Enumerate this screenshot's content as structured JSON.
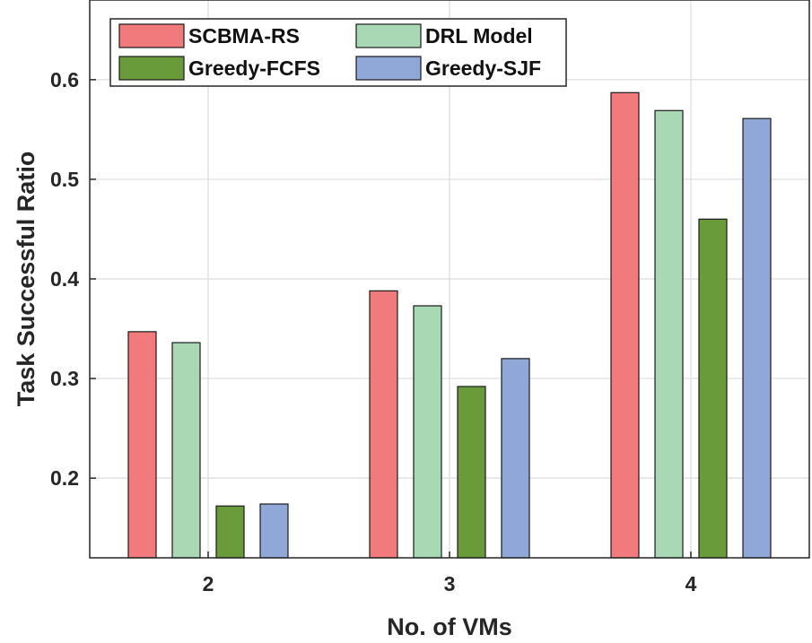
{
  "chart_data": {
    "type": "bar",
    "xlabel": "No. of VMs",
    "ylabel": "Task Successful Ratio",
    "categories": [
      "2",
      "3",
      "4"
    ],
    "ylim": [
      0.12,
      0.68
    ],
    "yticks": [
      0.2,
      0.3,
      0.4,
      0.5,
      0.6
    ],
    "ytick_labels": [
      "0.2",
      "0.3",
      "0.4",
      "0.5",
      "0.6"
    ],
    "grid": true,
    "legend_position": "top-left",
    "series": [
      {
        "name": "SCBMA-RS",
        "color": "#f07a7c",
        "values": [
          0.347,
          0.388,
          0.587
        ]
      },
      {
        "name": "DRL Model",
        "color": "#a9d8b4",
        "values": [
          0.336,
          0.373,
          0.569
        ]
      },
      {
        "name": "Greedy-FCFS",
        "color": "#6a9b3a",
        "values": [
          0.172,
          0.292,
          0.46
        ]
      },
      {
        "name": "Greedy-SJF",
        "color": "#8fa8d8",
        "values": [
          0.174,
          0.32,
          0.561
        ]
      }
    ]
  }
}
